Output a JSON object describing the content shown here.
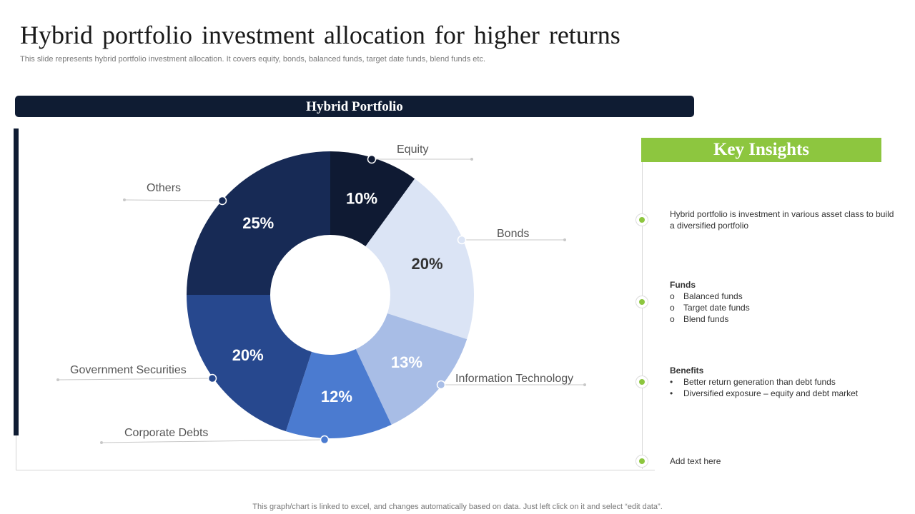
{
  "title": "Hybrid portfolio investment allocation for higher returns",
  "subtitle": "This slide represents hybrid portfolio investment allocation. It covers equity, bonds, balanced funds, target date funds, blend funds etc.",
  "panel_title": "Hybrid Portfolio",
  "chart_data": {
    "type": "pie",
    "donut": true,
    "categories": [
      "Equity",
      "Bonds",
      "Information Technology",
      "Corporate Debts",
      "Government Securities",
      "Others"
    ],
    "values": [
      10,
      20,
      13,
      12,
      20,
      25
    ],
    "value_labels": [
      "10%",
      "20%",
      "13%",
      "12%",
      "20%",
      "25%"
    ],
    "colors": [
      "#0f1a33",
      "#dbe4f5",
      "#a8bde6",
      "#4b7bd0",
      "#27488e",
      "#172a55"
    ],
    "label_colors": [
      "#ffffff",
      "#333333",
      "#ffffff",
      "#ffffff",
      "#ffffff",
      "#ffffff"
    ],
    "legend": "callout labels around chart"
  },
  "insights": {
    "title": "Key Insights",
    "intro": "Hybrid portfolio is investment in various asset class to build a diversified portfolio",
    "funds": {
      "heading": "Funds",
      "marker": "o",
      "items": [
        "Balanced funds",
        "Target date funds",
        "Blend funds"
      ]
    },
    "benefits": {
      "heading": "Benefits",
      "marker": "•",
      "items": [
        "Better return generation than debt funds",
        "Diversified exposure – equity and debt market"
      ]
    },
    "add_text": "Add text here"
  },
  "footer": "This graph/chart is linked to excel, and changes automatically based on data. Just left click on it and select “edit data”."
}
